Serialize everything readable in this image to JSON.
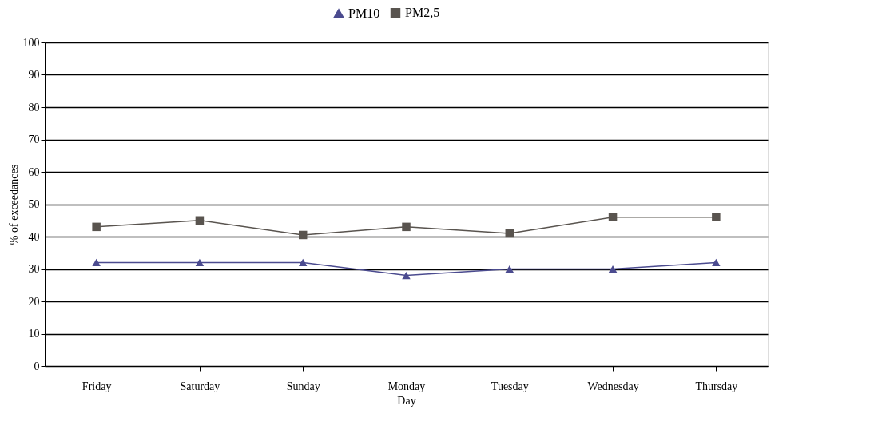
{
  "chart_data": {
    "type": "line",
    "xlabel": "Day",
    "ylabel": "% of exceedances",
    "categories": [
      "Friday",
      "Saturday",
      "Sunday",
      "Monday",
      "Tuesday",
      "Wednesday",
      "Thursday"
    ],
    "series": [
      {
        "name": "PM10",
        "color": "#4b4b8f",
        "marker": "triangle",
        "values": [
          32,
          32,
          32,
          28,
          30,
          30,
          32
        ]
      },
      {
        "name": "PM2,5",
        "color": "#59544f",
        "marker": "square",
        "values": [
          43,
          45,
          40.5,
          43,
          41,
          46,
          46
        ]
      }
    ],
    "ylim": [
      0,
      100
    ],
    "yticks": [
      0,
      10,
      20,
      30,
      40,
      50,
      60,
      70,
      80,
      90,
      100
    ],
    "grid": "y",
    "legend": "top",
    "line_style": "solid"
  }
}
